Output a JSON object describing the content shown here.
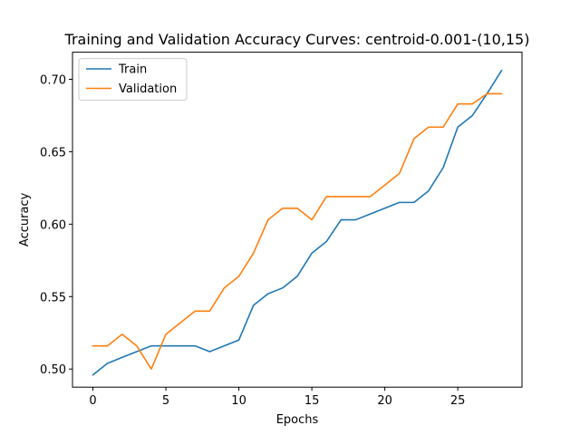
{
  "chart_data": {
    "type": "line",
    "title": "Training and Validation Accuracy Curves: centroid-0.001-(10,15)",
    "xlabel": "Epochs",
    "ylabel": "Accuracy",
    "xlim": [
      -1.4,
      29.4
    ],
    "ylim": [
      0.4875,
      0.7187
    ],
    "xticks": [
      0,
      5,
      10,
      15,
      20,
      25
    ],
    "xtick_labels": [
      "0",
      "5",
      "10",
      "15",
      "20",
      "25"
    ],
    "yticks": [
      0.5,
      0.55,
      0.6,
      0.65,
      0.7
    ],
    "ytick_labels": [
      "0.50",
      "0.55",
      "0.60",
      "0.65",
      "0.70"
    ],
    "grid": false,
    "legend_position": "upper-left",
    "x": [
      0,
      1,
      2,
      3,
      4,
      5,
      6,
      7,
      8,
      9,
      10,
      11,
      12,
      13,
      14,
      15,
      16,
      17,
      18,
      19,
      20,
      21,
      22,
      23,
      24,
      25,
      26,
      27,
      28
    ],
    "series": [
      {
        "name": "Train",
        "color": "#1f77b4",
        "values": [
          0.496,
          0.504,
          0.508,
          0.512,
          0.516,
          0.516,
          0.516,
          0.516,
          0.512,
          0.516,
          0.52,
          0.544,
          0.552,
          0.556,
          0.564,
          0.58,
          0.588,
          0.603,
          0.603,
          0.607,
          0.611,
          0.615,
          0.615,
          0.623,
          0.639,
          0.667,
          0.675,
          0.69,
          0.706
        ]
      },
      {
        "name": "Validation",
        "color": "#ff7f0e",
        "values": [
          0.516,
          0.516,
          0.524,
          0.516,
          0.5,
          0.524,
          0.532,
          0.54,
          0.54,
          0.556,
          0.564,
          0.58,
          0.603,
          0.611,
          0.611,
          0.603,
          0.619,
          0.619,
          0.619,
          0.619,
          0.627,
          0.635,
          0.659,
          0.667,
          0.667,
          0.683,
          0.683,
          0.69,
          0.69
        ]
      }
    ]
  }
}
